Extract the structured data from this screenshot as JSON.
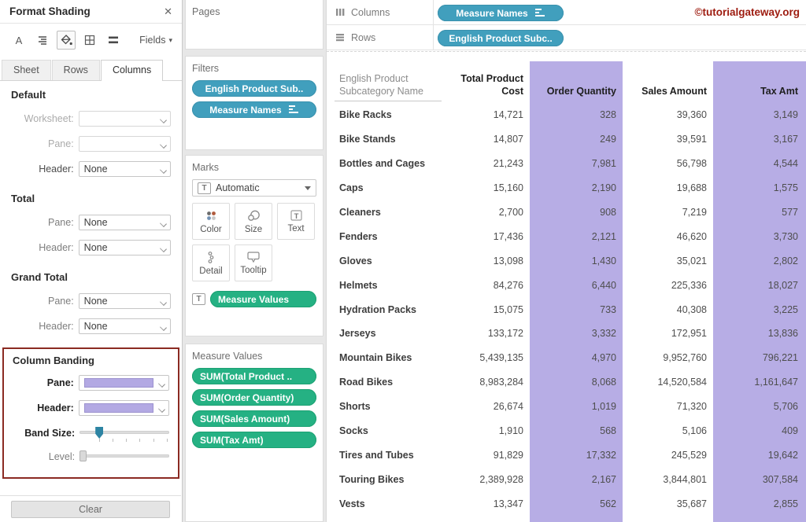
{
  "format_panel": {
    "title": "Format Shading",
    "toolbar": {
      "font_label": "A",
      "fields_label": "Fields"
    },
    "tabs": [
      "Sheet",
      "Rows",
      "Columns"
    ],
    "active_tab": "Columns",
    "default_section": {
      "heading": "Default",
      "rows": [
        {
          "label": "Worksheet:",
          "value": "",
          "disabled": true
        },
        {
          "label": "Pane:",
          "value": "",
          "disabled": true
        },
        {
          "label": "Header:",
          "value": "None",
          "disabled": false
        }
      ]
    },
    "total_section": {
      "heading": "Total",
      "rows": [
        {
          "label": "Pane:",
          "value": "None"
        },
        {
          "label": "Header:",
          "value": "None"
        }
      ]
    },
    "grand_total_section": {
      "heading": "Grand Total",
      "rows": [
        {
          "label": "Pane:",
          "value": "None"
        },
        {
          "label": "Header:",
          "value": "None"
        }
      ]
    },
    "column_banding_section": {
      "heading": "Column Banding",
      "pane_label": "Pane:",
      "header_label": "Header:",
      "band_size_label": "Band Size:",
      "level_label": "Level:",
      "band_size_value_pct": 22,
      "level_value_pct": 0
    },
    "clear_button": "Clear"
  },
  "cards": {
    "pages": {
      "title": "Pages"
    },
    "filters": {
      "title": "Filters",
      "pills": [
        {
          "label": "English Product Sub..",
          "sorted": false
        },
        {
          "label": "Measure Names",
          "sorted": true
        }
      ]
    },
    "marks": {
      "title": "Marks",
      "mark_type": "Automatic",
      "buttons": [
        {
          "label": "Color",
          "icon": "color"
        },
        {
          "label": "Size",
          "icon": "size"
        },
        {
          "label": "Text",
          "icon": "text"
        },
        {
          "label": "Detail",
          "icon": "detail"
        },
        {
          "label": "Tooltip",
          "icon": "tooltip"
        }
      ],
      "text_pill": "Measure Values"
    },
    "measure_values": {
      "title": "Measure Values",
      "pills": [
        "SUM(Total Product ..",
        "SUM(Order Quantity)",
        "SUM(Sales Amount)",
        "SUM(Tax Amt)"
      ]
    }
  },
  "shelves": {
    "columns_label": "Columns",
    "columns_pill": {
      "label": "Measure Names",
      "sorted": true
    },
    "rows_label": "Rows",
    "rows_pill": {
      "label": "English Product Subc..",
      "sorted": false
    },
    "watermark": "©tutorialgateway.org"
  },
  "table": {
    "row_header": "English Product Subcategory Name",
    "columns": [
      {
        "label": "Total Product Cost",
        "banded": false
      },
      {
        "label": "Order Quantity",
        "banded": true
      },
      {
        "label": "Sales Amount",
        "banded": false
      },
      {
        "label": "Tax Amt",
        "banded": true
      }
    ],
    "rows": [
      {
        "name": "Bike Racks",
        "values": [
          "14,721",
          "328",
          "39,360",
          "3,149"
        ]
      },
      {
        "name": "Bike Stands",
        "values": [
          "14,807",
          "249",
          "39,591",
          "3,167"
        ]
      },
      {
        "name": "Bottles and Cages",
        "values": [
          "21,243",
          "7,981",
          "56,798",
          "4,544"
        ]
      },
      {
        "name": "Caps",
        "values": [
          "15,160",
          "2,190",
          "19,688",
          "1,575"
        ]
      },
      {
        "name": "Cleaners",
        "values": [
          "2,700",
          "908",
          "7,219",
          "577"
        ]
      },
      {
        "name": "Fenders",
        "values": [
          "17,436",
          "2,121",
          "46,620",
          "3,730"
        ]
      },
      {
        "name": "Gloves",
        "values": [
          "13,098",
          "1,430",
          "35,021",
          "2,802"
        ]
      },
      {
        "name": "Helmets",
        "values": [
          "84,276",
          "6,440",
          "225,336",
          "18,027"
        ]
      },
      {
        "name": "Hydration Packs",
        "values": [
          "15,075",
          "733",
          "40,308",
          "3,225"
        ]
      },
      {
        "name": "Jerseys",
        "values": [
          "133,172",
          "3,332",
          "172,951",
          "13,836"
        ]
      },
      {
        "name": "Mountain Bikes",
        "values": [
          "5,439,135",
          "4,970",
          "9,952,760",
          "796,221"
        ]
      },
      {
        "name": "Road Bikes",
        "values": [
          "8,983,284",
          "8,068",
          "14,520,584",
          "1,161,647"
        ]
      },
      {
        "name": "Shorts",
        "values": [
          "26,674",
          "1,019",
          "71,320",
          "5,706"
        ]
      },
      {
        "name": "Socks",
        "values": [
          "1,910",
          "568",
          "5,106",
          "409"
        ]
      },
      {
        "name": "Tires and Tubes",
        "values": [
          "91,829",
          "17,332",
          "245,529",
          "19,642"
        ]
      },
      {
        "name": "Touring Bikes",
        "values": [
          "2,389,928",
          "2,167",
          "3,844,801",
          "307,584"
        ]
      },
      {
        "name": "Vests",
        "values": [
          "13,347",
          "562",
          "35,687",
          "2,855"
        ]
      }
    ]
  },
  "colors": {
    "pill_teal": "#419fbd",
    "pill_green": "#25b183",
    "band_purple": "#b7ade5",
    "swatch_purple": "#b3a9e3",
    "annotation_red": "#8b2a22",
    "watermark_red": "#9d1b0f"
  }
}
